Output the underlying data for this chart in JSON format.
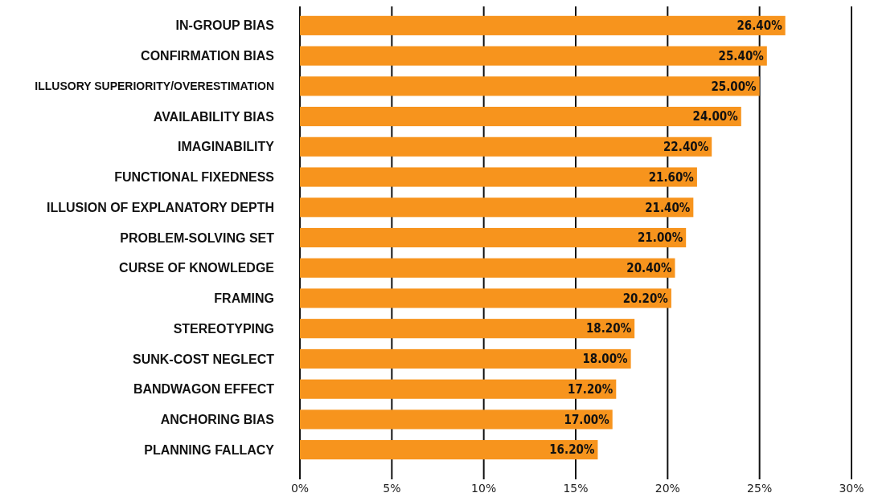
{
  "chart_data": {
    "type": "bar",
    "orientation": "horizontal",
    "categories": [
      "IN-GROUP BIAS",
      "CONFIRMATION BIAS",
      "ILLUSORY SUPERIORITY/OVERESTIMATION",
      "AVAILABILITY BIAS",
      "IMAGINABILITY",
      "FUNCTIONAL FIXEDNESS",
      "ILLUSION OF EXPLANATORY DEPTH",
      "PROBLEM-SOLVING SET",
      "CURSE OF KNOWLEDGE",
      "FRAMING",
      "STEREOTYPING",
      "SUNK-COST NEGLECT",
      "BANDWAGON EFFECT",
      "ANCHORING BIAS",
      "PLANNING FALLACY"
    ],
    "values": [
      26.4,
      25.4,
      25.0,
      24.0,
      22.4,
      21.6,
      21.4,
      21.0,
      20.4,
      20.2,
      18.2,
      18.0,
      17.2,
      17.0,
      16.2
    ],
    "value_labels": [
      "26.40%",
      "25.40%",
      "25.00%",
      "24.00%",
      "22.40%",
      "21.60%",
      "21.40%",
      "21.00%",
      "20.40%",
      "20.20%",
      "18.20%",
      "18.00%",
      "17.20%",
      "17.00%",
      "16.20%"
    ],
    "color": "#f7941d",
    "xlim": [
      0,
      30
    ],
    "xticks": [
      {
        "value": 0,
        "label": "0%"
      },
      {
        "value": 5,
        "label": "5%"
      },
      {
        "value": 10,
        "label": "10%"
      },
      {
        "value": 15,
        "label": "15%"
      },
      {
        "value": 20,
        "label": "20%"
      },
      {
        "value": 25,
        "label": "25%"
      },
      {
        "value": 30,
        "label": "30%"
      }
    ],
    "grid": "x"
  }
}
